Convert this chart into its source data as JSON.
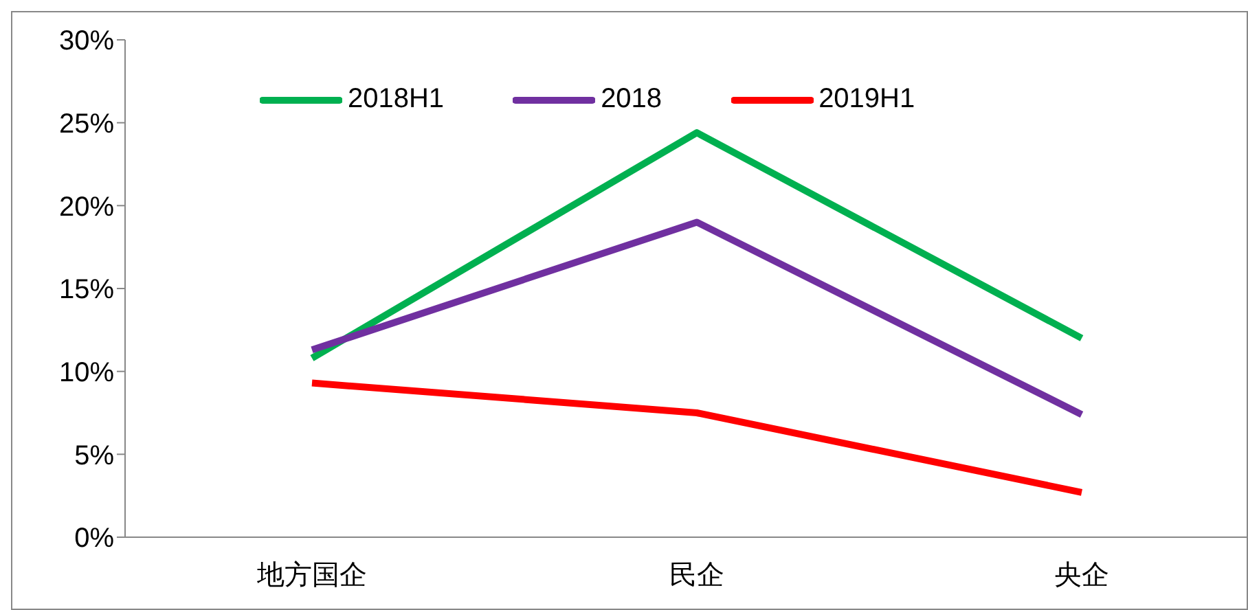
{
  "chart_data": {
    "type": "line",
    "categories": [
      "地方国企",
      "民企",
      "央企"
    ],
    "series": [
      {
        "name": "2018H1",
        "color": "#00b050",
        "values": [
          10.8,
          24.4,
          12.0
        ]
      },
      {
        "name": "2018",
        "color": "#7030a0",
        "values": [
          11.3,
          19.0,
          7.4
        ]
      },
      {
        "name": "2019H1",
        "color": "#ff0000",
        "values": [
          9.3,
          7.5,
          2.7
        ]
      }
    ],
    "ylim": [
      0,
      30
    ],
    "yticks": [
      {
        "value": 0,
        "label": "0%"
      },
      {
        "value": 5,
        "label": "5%"
      },
      {
        "value": 10,
        "label": "10%"
      },
      {
        "value": 15,
        "label": "15%"
      },
      {
        "value": 20,
        "label": "20%"
      },
      {
        "value": 25,
        "label": "25%"
      },
      {
        "value": 30,
        "label": "30%"
      }
    ],
    "grid": false,
    "legend": "top",
    "marker": "none",
    "line_style": "solid"
  }
}
